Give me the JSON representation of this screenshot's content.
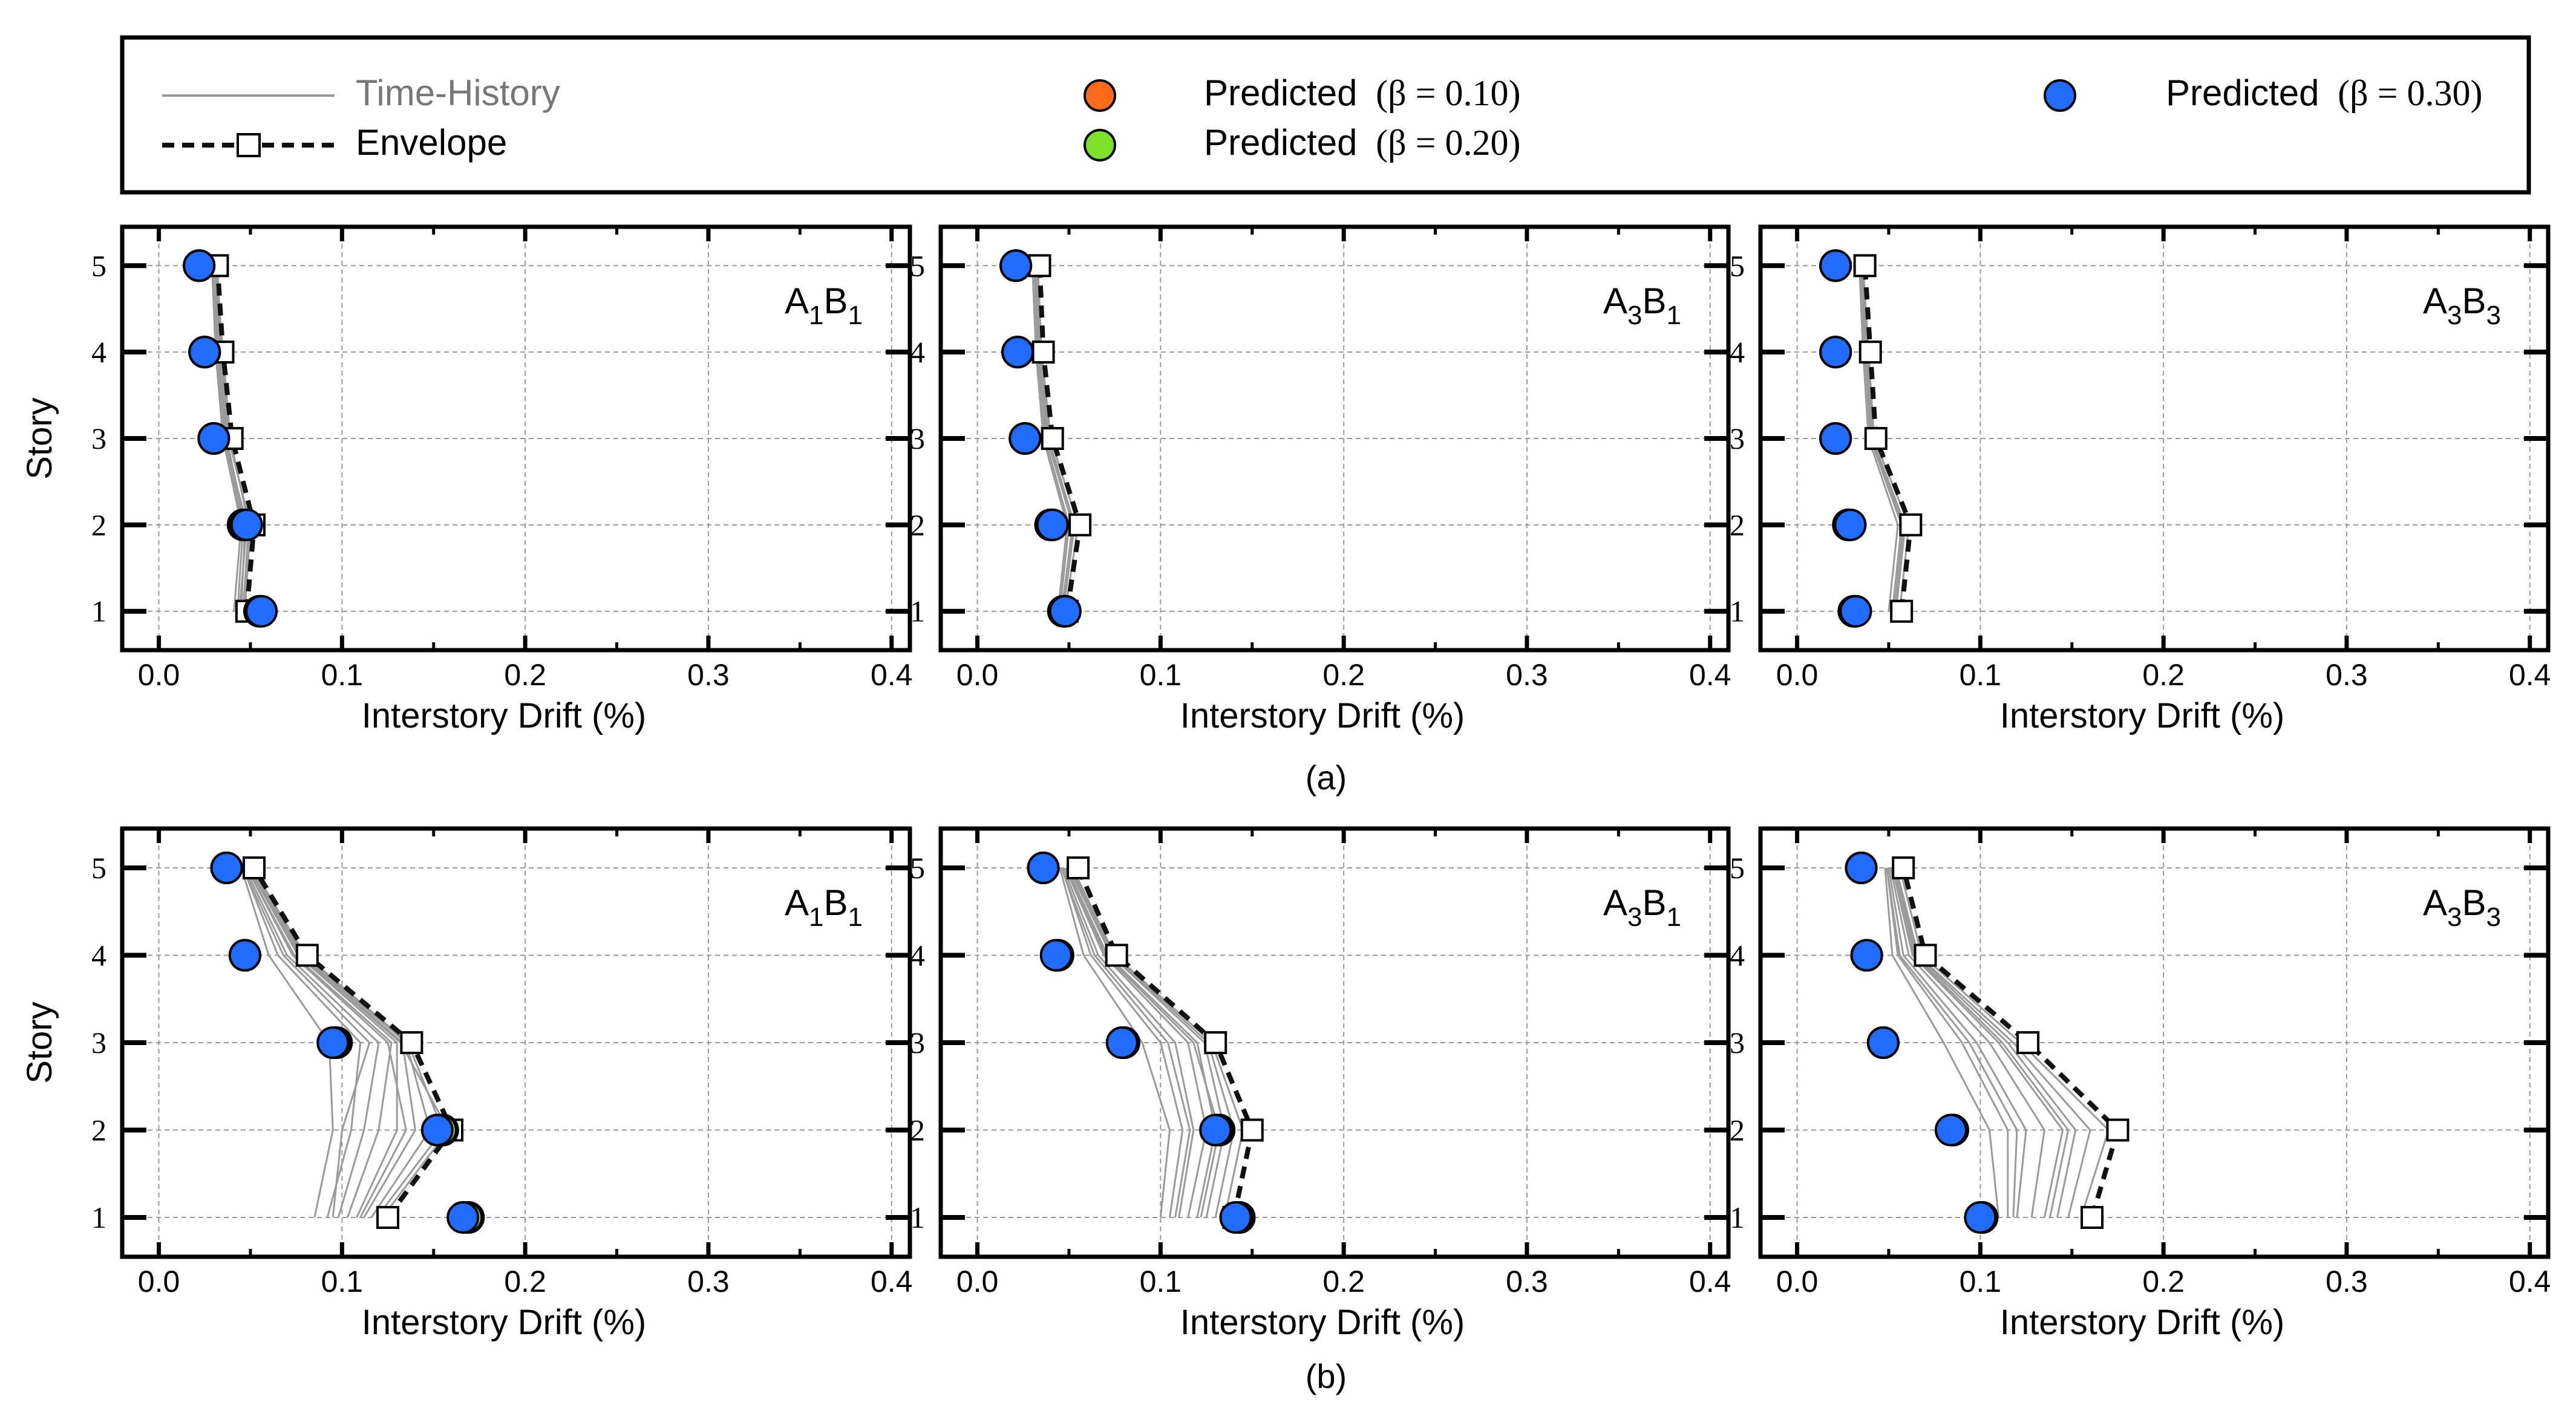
{
  "legend": {
    "time_history_label": "Time-History",
    "envelope_label": "Envelope",
    "pred_010": {
      "word": "Predicted",
      "beta": "(β = 0.10)",
      "color": "#ff6a1a"
    },
    "pred_020": {
      "word": "Predicted",
      "beta": "(β = 0.20)",
      "color": "#7fe02a"
    },
    "pred_030": {
      "word": "Predicted",
      "beta": "(β = 0.30)",
      "color": "#1f6cff"
    }
  },
  "colors": {
    "time_history": "#9a9a9a",
    "envelope": "#111111",
    "grid": "#9a9a9a",
    "frame": "#000000"
  },
  "row_labels": [
    "(a)",
    "(b)"
  ],
  "chart_data": [
    {
      "type": "line",
      "row": "(a)",
      "panel_label": "A1B1",
      "xlabel": "Interstory Drift (%)",
      "ylabel": "Story",
      "xlim": [
        -0.02,
        0.41
      ],
      "ylim": [
        0.55,
        5.45
      ],
      "xticks": [
        "0.0",
        "0.1",
        "0.2",
        "0.3",
        "0.4"
      ],
      "yticks": [
        "1",
        "2",
        "3",
        "4",
        "5"
      ],
      "stories": [
        1,
        2,
        3,
        4,
        5
      ],
      "envelope": [
        0.048,
        0.052,
        0.04,
        0.035,
        0.032
      ],
      "predicted_010": [
        0.055,
        0.046,
        0.03,
        0.025,
        0.022
      ],
      "predicted_020": [
        0.055,
        0.047,
        0.03,
        0.025,
        0.022
      ],
      "predicted_030": [
        0.056,
        0.048,
        0.03,
        0.025,
        0.022
      ],
      "time_history": [
        [
          0.045,
          0.047,
          0.037,
          0.033,
          0.031
        ],
        [
          0.043,
          0.046,
          0.036,
          0.032,
          0.03
        ],
        [
          0.047,
          0.05,
          0.038,
          0.034,
          0.032
        ],
        [
          0.041,
          0.045,
          0.035,
          0.031,
          0.029
        ],
        [
          0.046,
          0.049,
          0.039,
          0.035,
          0.031
        ],
        [
          0.044,
          0.048,
          0.036,
          0.032,
          0.03
        ]
      ]
    },
    {
      "type": "line",
      "row": "(a)",
      "panel_label": "A3B1",
      "xlabel": "Interstory Drift (%)",
      "ylabel": "Story",
      "xlim": [
        -0.02,
        0.41
      ],
      "ylim": [
        0.55,
        5.45
      ],
      "xticks": [
        "0.0",
        "0.1",
        "0.2",
        "0.3",
        "0.4"
      ],
      "yticks": [
        "1",
        "2",
        "3",
        "4",
        "5"
      ],
      "stories": [
        1,
        2,
        3,
        4,
        5
      ],
      "envelope": [
        0.049,
        0.056,
        0.041,
        0.036,
        0.034
      ],
      "predicted_010": [
        0.047,
        0.04,
        0.026,
        0.022,
        0.021
      ],
      "predicted_020": [
        0.047,
        0.04,
        0.026,
        0.022,
        0.021
      ],
      "predicted_030": [
        0.048,
        0.041,
        0.026,
        0.022,
        0.021
      ],
      "time_history": [
        [
          0.047,
          0.053,
          0.039,
          0.034,
          0.032
        ],
        [
          0.045,
          0.05,
          0.037,
          0.033,
          0.031
        ],
        [
          0.048,
          0.055,
          0.04,
          0.035,
          0.033
        ],
        [
          0.044,
          0.049,
          0.036,
          0.032,
          0.03
        ],
        [
          0.046,
          0.052,
          0.038,
          0.034,
          0.031
        ]
      ]
    },
    {
      "type": "line",
      "row": "(a)",
      "panel_label": "A3B3",
      "xlabel": "Interstory Drift (%)",
      "ylabel": "Story",
      "xlim": [
        -0.02,
        0.41
      ],
      "ylim": [
        0.55,
        5.45
      ],
      "xticks": [
        "0.0",
        "0.1",
        "0.2",
        "0.3",
        "0.4"
      ],
      "yticks": [
        "1",
        "2",
        "3",
        "4",
        "5"
      ],
      "stories": [
        1,
        2,
        3,
        4,
        5
      ],
      "envelope": [
        0.057,
        0.062,
        0.043,
        0.04,
        0.037
      ],
      "predicted_010": [
        0.031,
        0.028,
        0.021,
        0.021,
        0.021
      ],
      "predicted_020": [
        0.031,
        0.028,
        0.021,
        0.021,
        0.021
      ],
      "predicted_030": [
        0.032,
        0.029,
        0.021,
        0.021,
        0.021
      ],
      "time_history": [
        [
          0.054,
          0.059,
          0.041,
          0.038,
          0.036
        ],
        [
          0.052,
          0.057,
          0.04,
          0.037,
          0.035
        ],
        [
          0.056,
          0.061,
          0.042,
          0.039,
          0.036
        ],
        [
          0.05,
          0.055,
          0.039,
          0.036,
          0.034
        ],
        [
          0.053,
          0.058,
          0.041,
          0.038,
          0.035
        ]
      ]
    },
    {
      "type": "line",
      "row": "(b)",
      "panel_label": "A1B1",
      "xlabel": "Interstory Drift (%)",
      "ylabel": "Story",
      "xlim": [
        -0.02,
        0.41
      ],
      "ylim": [
        0.55,
        5.45
      ],
      "xticks": [
        "0.0",
        "0.1",
        "0.2",
        "0.3",
        "0.4"
      ],
      "yticks": [
        "1",
        "2",
        "3",
        "4",
        "5"
      ],
      "stories": [
        1,
        2,
        3,
        4,
        5
      ],
      "envelope": [
        0.125,
        0.16,
        0.138,
        0.081,
        0.052
      ],
      "predicted_010": [
        0.169,
        0.155,
        0.097,
        0.047,
        0.037
      ],
      "predicted_020": [
        0.168,
        0.154,
        0.096,
        0.047,
        0.037
      ],
      "predicted_030": [
        0.166,
        0.152,
        0.095,
        0.047,
        0.037
      ],
      "time_history": [
        [
          0.085,
          0.095,
          0.093,
          0.06,
          0.045
        ],
        [
          0.092,
          0.105,
          0.11,
          0.065,
          0.046
        ],
        [
          0.098,
          0.112,
          0.12,
          0.07,
          0.047
        ],
        [
          0.103,
          0.12,
          0.127,
          0.074,
          0.048
        ],
        [
          0.108,
          0.13,
          0.13,
          0.076,
          0.049
        ],
        [
          0.112,
          0.14,
          0.133,
          0.078,
          0.05
        ],
        [
          0.116,
          0.148,
          0.135,
          0.079,
          0.05
        ],
        [
          0.119,
          0.155,
          0.136,
          0.08,
          0.051
        ],
        [
          0.122,
          0.158,
          0.132,
          0.077,
          0.049
        ],
        [
          0.095,
          0.1,
          0.115,
          0.068,
          0.046
        ],
        [
          0.11,
          0.135,
          0.125,
          0.073,
          0.048
        ]
      ]
    },
    {
      "type": "line",
      "row": "(b)",
      "panel_label": "A3B1",
      "xlabel": "Interstory Drift (%)",
      "ylabel": "Story",
      "xlim": [
        -0.02,
        0.41
      ],
      "ylim": [
        0.55,
        5.45
      ],
      "xticks": [
        "0.0",
        "0.1",
        "0.2",
        "0.3",
        "0.4"
      ],
      "yticks": [
        "1",
        "2",
        "3",
        "4",
        "5"
      ],
      "stories": [
        1,
        2,
        3,
        4,
        5
      ],
      "envelope": [
        0.14,
        0.15,
        0.13,
        0.076,
        0.055
      ],
      "predicted_010": [
        0.143,
        0.132,
        0.08,
        0.044,
        0.036
      ],
      "predicted_020": [
        0.142,
        0.131,
        0.08,
        0.044,
        0.036
      ],
      "predicted_030": [
        0.141,
        0.13,
        0.079,
        0.043,
        0.036
      ],
      "time_history": [
        [
          0.1,
          0.105,
          0.09,
          0.058,
          0.045
        ],
        [
          0.105,
          0.112,
          0.1,
          0.062,
          0.046
        ],
        [
          0.11,
          0.118,
          0.108,
          0.066,
          0.047
        ],
        [
          0.115,
          0.125,
          0.115,
          0.069,
          0.048
        ],
        [
          0.12,
          0.13,
          0.12,
          0.071,
          0.049
        ],
        [
          0.125,
          0.135,
          0.124,
          0.073,
          0.05
        ],
        [
          0.13,
          0.14,
          0.126,
          0.074,
          0.051
        ],
        [
          0.135,
          0.145,
          0.128,
          0.075,
          0.052
        ],
        [
          0.108,
          0.116,
          0.104,
          0.064,
          0.046
        ],
        [
          0.122,
          0.132,
          0.118,
          0.07,
          0.049
        ]
      ]
    },
    {
      "type": "line",
      "row": "(b)",
      "panel_label": "A3B3",
      "xlabel": "Interstory Drift (%)",
      "ylabel": "Story",
      "xlim": [
        -0.02,
        0.41
      ],
      "ylim": [
        0.55,
        5.45
      ],
      "xticks": [
        "0.0",
        "0.1",
        "0.2",
        "0.3",
        "0.4"
      ],
      "yticks": [
        "1",
        "2",
        "3",
        "4",
        "5"
      ],
      "stories": [
        1,
        2,
        3,
        4,
        5
      ],
      "envelope": [
        0.161,
        0.175,
        0.126,
        0.07,
        0.058
      ],
      "predicted_010": [
        0.101,
        0.085,
        0.047,
        0.038,
        0.035
      ],
      "predicted_020": [
        0.101,
        0.085,
        0.047,
        0.038,
        0.035
      ],
      "predicted_030": [
        0.1,
        0.084,
        0.047,
        0.038,
        0.035
      ],
      "time_history": [
        [
          0.11,
          0.105,
          0.08,
          0.052,
          0.048
        ],
        [
          0.115,
          0.115,
          0.09,
          0.055,
          0.049
        ],
        [
          0.12,
          0.125,
          0.098,
          0.058,
          0.05
        ],
        [
          0.128,
          0.135,
          0.105,
          0.061,
          0.051
        ],
        [
          0.135,
          0.145,
          0.11,
          0.063,
          0.052
        ],
        [
          0.142,
          0.152,
          0.115,
          0.065,
          0.053
        ],
        [
          0.148,
          0.16,
          0.118,
          0.066,
          0.054
        ],
        [
          0.155,
          0.17,
          0.122,
          0.068,
          0.056
        ],
        [
          0.118,
          0.12,
          0.094,
          0.056,
          0.049
        ],
        [
          0.138,
          0.148,
          0.112,
          0.064,
          0.052
        ]
      ]
    }
  ]
}
